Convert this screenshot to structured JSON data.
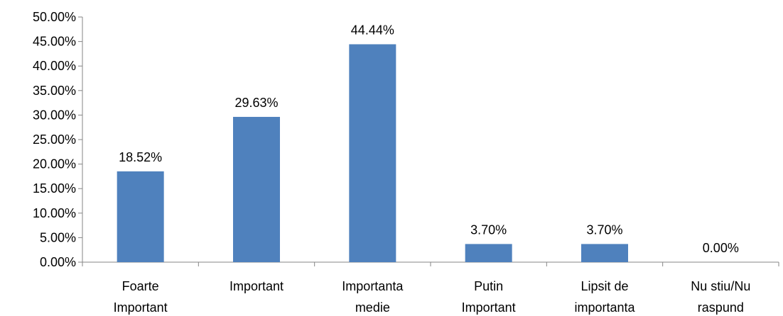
{
  "chart_data": {
    "type": "bar",
    "categories": [
      [
        "Foarte",
        "Important"
      ],
      [
        "Important"
      ],
      [
        "Importanta",
        "medie"
      ],
      [
        "Putin",
        "Important"
      ],
      [
        "Lipsit de",
        "importanta"
      ],
      [
        "Nu stiu/Nu",
        "raspund"
      ]
    ],
    "values": [
      18.52,
      29.63,
      44.44,
      3.7,
      3.7,
      0.0
    ],
    "data_labels": [
      "18.52%",
      "29.63%",
      "44.44%",
      "3.70%",
      "3.70%",
      "0.00%"
    ],
    "y_ticks": [
      "0.00%",
      "5.00%",
      "10.00%",
      "15.00%",
      "20.00%",
      "25.00%",
      "30.00%",
      "35.00%",
      "40.00%",
      "45.00%",
      "50.00%"
    ],
    "ylim": [
      0,
      50
    ],
    "title": "",
    "xlabel": "",
    "ylabel": "",
    "grid": false,
    "legend": "none",
    "bar_color": "#4f81bd",
    "axis_color": "#868686"
  }
}
